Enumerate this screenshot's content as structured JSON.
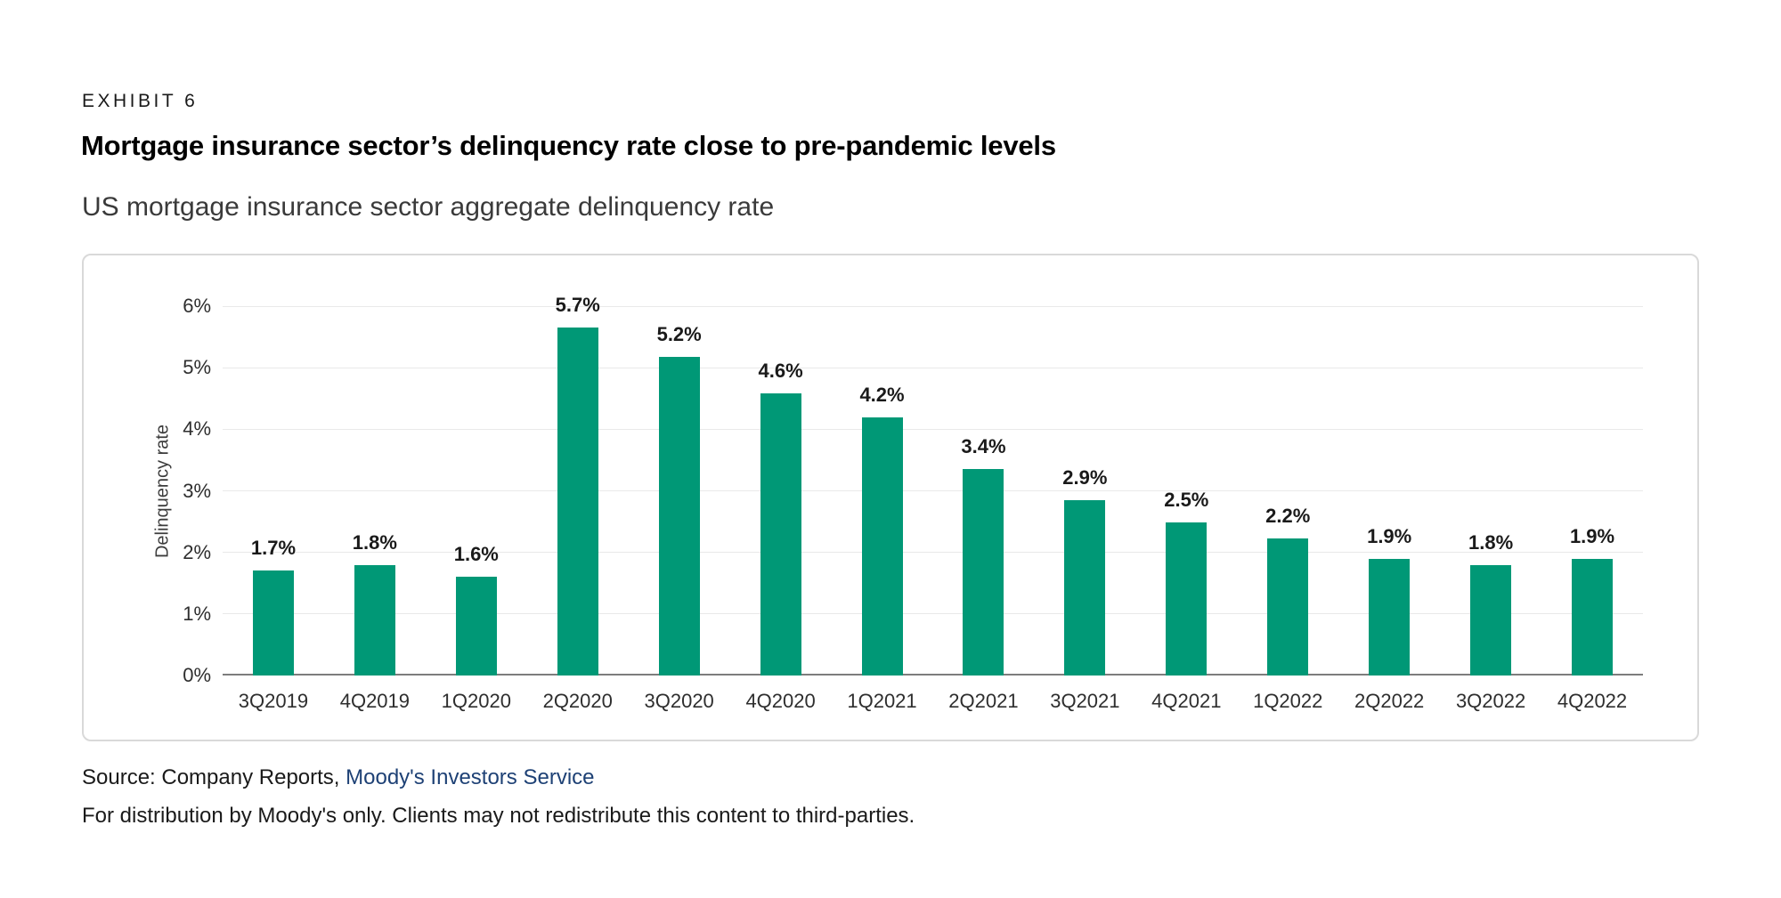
{
  "header": {
    "exhibit_label": "EXHIBIT 6",
    "title": "Mortgage insurance sector’s delinquency rate close to pre-pandemic levels",
    "subtitle": "US mortgage insurance sector aggregate delinquency rate"
  },
  "chart_data": {
    "type": "bar",
    "categories": [
      "3Q2019",
      "4Q2019",
      "1Q2020",
      "2Q2020",
      "3Q2020",
      "4Q2020",
      "1Q2021",
      "2Q2021",
      "3Q2021",
      "4Q2021",
      "1Q2022",
      "2Q2022",
      "3Q2022",
      "4Q2022"
    ],
    "values": [
      1.7,
      1.8,
      1.6,
      5.65,
      5.17,
      4.58,
      4.2,
      3.35,
      2.85,
      2.48,
      2.22,
      1.9,
      1.8,
      1.9
    ],
    "value_labels": [
      "1.7%",
      "1.8%",
      "1.6%",
      "5.7%",
      "5.2%",
      "4.6%",
      "4.2%",
      "3.4%",
      "2.9%",
      "2.5%",
      "2.2%",
      "1.9%",
      "1.8%",
      "1.9%"
    ],
    "title": "US mortgage insurance sector aggregate delinquency rate",
    "xlabel": "",
    "ylabel": "Delinquency rate",
    "yticks": [
      "0%",
      "1%",
      "2%",
      "3%",
      "4%",
      "5%",
      "6%"
    ],
    "ylim": [
      0,
      6
    ],
    "grid": "horizontal",
    "legend": "none",
    "bar_color": "#009876"
  },
  "footer": {
    "source_prefix": "Source: Company Reports, ",
    "source_link": "Moody's Investors Service",
    "disclaimer": "For distribution by Moody's only. Clients may not redistribute this content to third-parties."
  },
  "colors": {
    "bar": "#009876",
    "link": "#1e4175",
    "gridline": "#e9e9e9",
    "axis_line": "#7d7d7d",
    "panel_border": "#d9d9d9",
    "text": "#1a1a1a"
  }
}
